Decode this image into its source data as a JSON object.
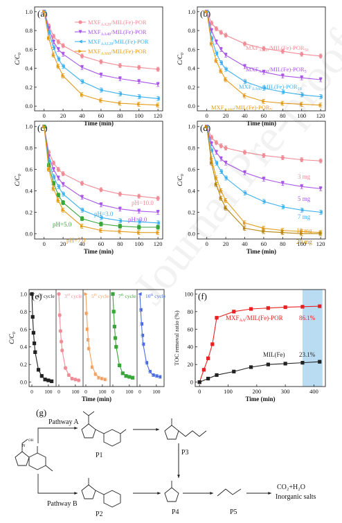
{
  "watermark": "Journal Pre-proofs",
  "chart_data": [
    {
      "panel": "(a)",
      "type": "line",
      "ylabel": "C/C0",
      "xlabel": "Time (min)",
      "xlim": [
        -10,
        125
      ],
      "ylim": [
        -0.05,
        1.05
      ],
      "xticks": [
        0,
        20,
        40,
        60,
        80,
        100,
        120
      ],
      "yticks": [
        0.0,
        0.2,
        0.4,
        0.6,
        0.8,
        1.0
      ],
      "legend_position": "top-right",
      "x": [
        0,
        5,
        10,
        15,
        20,
        40,
        60,
        80,
        100,
        120
      ],
      "series": [
        {
          "name": "MXF_AA20/MIL(Fe)-POR",
          "color": "#f08c96",
          "marker": "circle",
          "values": [
            1.0,
            0.85,
            0.74,
            0.68,
            0.64,
            0.53,
            0.47,
            0.43,
            0.41,
            0.39
          ]
        },
        {
          "name": "MXF_AA40/MIL(Fe)-POR",
          "color": "#a855e8",
          "marker": "triangle-down",
          "values": [
            1.0,
            0.82,
            0.68,
            0.6,
            0.55,
            0.41,
            0.33,
            0.29,
            0.26,
            0.23
          ]
        },
        {
          "name": "MXF_AA120/MIL(Fe)-POR",
          "color": "#3ab0f0",
          "marker": "triangle-left",
          "values": [
            1.0,
            0.78,
            0.62,
            0.5,
            0.42,
            0.26,
            0.17,
            0.13,
            0.1,
            0.08
          ]
        },
        {
          "name": "MXF_AA60/MIL(Fe)-POR",
          "color": "#e59b1a",
          "marker": "triangle-right",
          "values": [
            1.0,
            0.72,
            0.54,
            0.42,
            0.32,
            0.12,
            0.06,
            0.03,
            0.02,
            0.01
          ]
        }
      ]
    },
    {
      "panel": "(b)",
      "type": "line",
      "ylabel": "C/C0",
      "xlabel": "Time (min)",
      "xlim": [
        -10,
        125
      ],
      "ylim": [
        -0.05,
        1.05
      ],
      "xticks": [
        0,
        20,
        40,
        60,
        80,
        100,
        120
      ],
      "yticks": [
        0.0,
        0.2,
        0.4,
        0.6,
        0.8,
        1.0
      ],
      "x": [
        0,
        5,
        10,
        15,
        20,
        40,
        60,
        80,
        100,
        120
      ],
      "series": [
        {
          "name": "MXF_AA60/MIL(Fe)-POR_50",
          "color": "#f08c96",
          "marker": "circle",
          "values": [
            1.0,
            0.88,
            0.82,
            0.78,
            0.75,
            0.66,
            0.61,
            0.58,
            0.55,
            0.53
          ]
        },
        {
          "name": "MXF_AA60/MIL(Fe)-POR_5",
          "color": "#a855e8",
          "marker": "triangle-down",
          "values": [
            1.0,
            0.8,
            0.68,
            0.6,
            0.54,
            0.42,
            0.36,
            0.32,
            0.3,
            0.28
          ]
        },
        {
          "name": "MXF_AA60/MIL(Fe)-POR_10",
          "color": "#3ab0f0",
          "marker": "triangle-left",
          "values": [
            1.0,
            0.72,
            0.56,
            0.46,
            0.39,
            0.26,
            0.19,
            0.15,
            0.12,
            0.1
          ]
        },
        {
          "name": "MXF_AA60/MIL(Fe)-POR_5'",
          "color": "#e59b1a",
          "marker": "triangle-right",
          "values": [
            1.0,
            0.66,
            0.48,
            0.37,
            0.28,
            0.11,
            0.05,
            0.03,
            0.02,
            0.01
          ]
        }
      ],
      "annotations": [
        "MXF_AA60/MIL(Fe)-POR_50",
        "MXF_AA60/MIL(Fe)-POR_5",
        "MXF_AA60/MIL(Fe)-POR_10",
        "MXF_AA60/MIL(Fe)-POR_5'"
      ]
    },
    {
      "panel": "(c)",
      "type": "line",
      "ylabel": "C/C0",
      "xlabel": "Time (min)",
      "xlim": [
        -10,
        125
      ],
      "ylim": [
        -0.05,
        1.05
      ],
      "xticks": [
        0,
        20,
        40,
        60,
        80,
        100,
        120
      ],
      "yticks": [
        0.0,
        0.2,
        0.4,
        0.6,
        0.8,
        1.0
      ],
      "x": [
        0,
        5,
        10,
        15,
        20,
        40,
        60,
        80,
        100,
        120
      ],
      "series": [
        {
          "name": "pH=10.0",
          "color": "#f08c96",
          "marker": "circle",
          "values": [
            1.0,
            0.76,
            0.66,
            0.6,
            0.56,
            0.47,
            0.41,
            0.37,
            0.35,
            0.33
          ]
        },
        {
          "name": "pH=9.0",
          "color": "#a855e8",
          "marker": "triangle-down",
          "values": [
            1.0,
            0.72,
            0.6,
            0.52,
            0.46,
            0.34,
            0.27,
            0.23,
            0.21,
            0.2
          ]
        },
        {
          "name": "pH=3.0",
          "color": "#3ab0f0",
          "marker": "triangle-left",
          "values": [
            1.0,
            0.68,
            0.53,
            0.44,
            0.37,
            0.22,
            0.15,
            0.12,
            0.11,
            0.1
          ]
        },
        {
          "name": "pH=5.0",
          "color": "#39a639",
          "marker": "square",
          "values": [
            1.0,
            0.64,
            0.47,
            0.36,
            0.29,
            0.14,
            0.09,
            0.07,
            0.06,
            0.06
          ]
        },
        {
          "name": "pH=7.0",
          "color": "#e59b1a",
          "marker": "triangle-right",
          "values": [
            1.0,
            0.6,
            0.42,
            0.31,
            0.22,
            0.07,
            0.03,
            0.02,
            0.01,
            0.01
          ]
        }
      ]
    },
    {
      "panel": "(d)",
      "type": "line",
      "ylabel": "C/C0",
      "xlabel": "Time (min)",
      "xlim": [
        -10,
        125
      ],
      "ylim": [
        -0.05,
        1.05
      ],
      "xticks": [
        0,
        20,
        40,
        60,
        80,
        100,
        120
      ],
      "yticks": [
        0.0,
        0.2,
        0.4,
        0.6,
        0.8,
        1.0
      ],
      "x": [
        0,
        5,
        10,
        15,
        20,
        40,
        60,
        80,
        100,
        120
      ],
      "series": [
        {
          "name": "3 mg",
          "color": "#f08c96",
          "marker": "circle",
          "values": [
            1.0,
            0.9,
            0.85,
            0.82,
            0.8,
            0.76,
            0.73,
            0.71,
            0.69,
            0.68
          ]
        },
        {
          "name": "5 mg",
          "color": "#a855e8",
          "marker": "triangle-down",
          "values": [
            1.0,
            0.84,
            0.76,
            0.7,
            0.66,
            0.57,
            0.51,
            0.47,
            0.44,
            0.42
          ]
        },
        {
          "name": "7 mg",
          "color": "#3ab0f0",
          "marker": "triangle-left",
          "values": [
            1.0,
            0.78,
            0.66,
            0.58,
            0.52,
            0.38,
            0.3,
            0.25,
            0.22,
            0.2
          ]
        },
        {
          "name": "10 mg",
          "color": "#e59b1a",
          "marker": "triangle-right",
          "values": [
            1.0,
            0.7,
            0.52,
            0.4,
            0.31,
            0.1,
            0.05,
            0.03,
            0.02,
            0.01
          ]
        },
        {
          "name": "20 mg",
          "color": "#b8860b",
          "marker": "triangle-right",
          "values": [
            1.0,
            0.66,
            0.46,
            0.33,
            0.24,
            0.05,
            0.02,
            0.01,
            0.0,
            0.0
          ]
        }
      ]
    },
    {
      "panel": "(e)",
      "type": "line",
      "ylabel": "C/C0",
      "xlabel": "Time (min)",
      "ylim": [
        -0.05,
        1.05
      ],
      "yticks": [
        0.0,
        0.2,
        0.4,
        0.6,
        0.8,
        1.0
      ],
      "sub_xticks": [
        0,
        100
      ],
      "x_sub": [
        0,
        5,
        10,
        15,
        20,
        40,
        60,
        80,
        100,
        120
      ],
      "series": [
        {
          "name": "1st cycle",
          "color": "#222222",
          "marker": "square",
          "values": [
            1.0,
            0.74,
            0.56,
            0.44,
            0.34,
            0.14,
            0.07,
            0.03,
            0.02,
            0.01
          ]
        },
        {
          "name": "3rd cycle",
          "color": "#f08c96",
          "marker": "circle",
          "values": [
            1.0,
            0.76,
            0.58,
            0.46,
            0.36,
            0.16,
            0.08,
            0.04,
            0.03,
            0.02
          ]
        },
        {
          "name": "5th cycle",
          "color": "#f0a060",
          "marker": "triangle-right",
          "values": [
            1.0,
            0.78,
            0.6,
            0.48,
            0.38,
            0.17,
            0.09,
            0.05,
            0.04,
            0.03
          ]
        },
        {
          "name": "7th cycle",
          "color": "#39a639",
          "marker": "square",
          "values": [
            1.0,
            0.8,
            0.63,
            0.5,
            0.4,
            0.19,
            0.1,
            0.07,
            0.06,
            0.05
          ]
        },
        {
          "name": "10th cycle",
          "color": "#4a6be0",
          "marker": "triangle-left",
          "values": [
            1.0,
            0.82,
            0.66,
            0.53,
            0.43,
            0.22,
            0.12,
            0.08,
            0.07,
            0.06
          ]
        }
      ]
    },
    {
      "panel": "(f)",
      "type": "line",
      "ylabel": "TOC removal ratio (%)",
      "xlabel": "Time (min)",
      "xlim": [
        -15,
        440
      ],
      "ylim": [
        -5,
        105
      ],
      "xticks": [
        0,
        100,
        200,
        300,
        400
      ],
      "yticks": [
        0,
        20,
        40,
        60,
        80,
        100
      ],
      "highlight_range": [
        360,
        430
      ],
      "series": [
        {
          "name": "MXF_AA/MIL(Fe)-POR",
          "color": "#e82020",
          "marker": "square",
          "x": [
            0,
            15,
            30,
            45,
            60,
            120,
            180,
            240,
            300,
            360,
            420
          ],
          "values": [
            0,
            14,
            27,
            43,
            73,
            80,
            83,
            84,
            85,
            85.5,
            86.1
          ]
        },
        {
          "name": "MIL(Fe)",
          "color": "#222222",
          "marker": "square",
          "x": [
            0,
            30,
            60,
            120,
            180,
            240,
            300,
            360,
            420
          ],
          "values": [
            0,
            4,
            8,
            12,
            17,
            20,
            21,
            22,
            23.1
          ]
        }
      ],
      "annotations": [
        "86.1%",
        "23.1%"
      ]
    }
  ],
  "scheme": {
    "panel": "(g)",
    "pathway_a": "Pathway A",
    "pathway_b": "Pathway B",
    "p1": "P1",
    "p2": "P2",
    "p3": "P3",
    "p4": "P4",
    "p5": "P5",
    "product_line1": "CO₂+H₂O",
    "product_line2": "Inorganic salts"
  }
}
